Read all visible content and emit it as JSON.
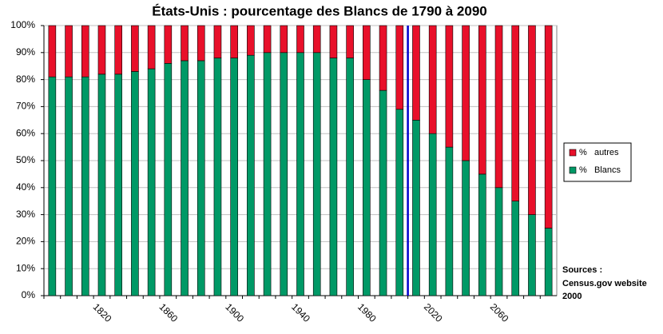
{
  "chart_data": {
    "type": "stacked_bar",
    "title": "États-Unis : pourcentage des Blancs de 1790 à 2090",
    "categories": [
      null,
      null,
      null,
      "1820",
      null,
      null,
      null,
      "1860",
      null,
      null,
      null,
      "1900",
      null,
      null,
      null,
      "1940",
      null,
      null,
      null,
      "1980",
      null,
      null,
      null,
      "2020",
      null,
      null,
      null,
      "2060",
      null,
      null,
      null
    ],
    "series": [
      {
        "name": "%   Blancs",
        "color": "#009966",
        "values": [
          81,
          81,
          81,
          82,
          82,
          83,
          84,
          86,
          87,
          87,
          88,
          88,
          89,
          90,
          90,
          90,
          90,
          88,
          88,
          80,
          76,
          69,
          65,
          60,
          55,
          50,
          45,
          40,
          35,
          30,
          25
        ]
      },
      {
        "name": "%   autres",
        "color": "#e8102a",
        "values": [
          19,
          19,
          19,
          18,
          18,
          17,
          16,
          14,
          13,
          13,
          12,
          12,
          11,
          10,
          10,
          10,
          10,
          12,
          12,
          20,
          24,
          31,
          35,
          40,
          45,
          50,
          55,
          60,
          65,
          70,
          75
        ]
      }
    ],
    "ylim": [
      0,
      100
    ],
    "yticks": [
      {
        "value": 0,
        "label": "0%"
      },
      {
        "value": 10,
        "label": "10%"
      },
      {
        "value": 20,
        "label": "20%"
      },
      {
        "value": 30,
        "label": "30%"
      },
      {
        "value": 40,
        "label": "40%"
      },
      {
        "value": 50,
        "label": "50%"
      },
      {
        "value": 60,
        "label": "60%"
      },
      {
        "value": 70,
        "label": "70%"
      },
      {
        "value": 80,
        "label": "80%"
      },
      {
        "value": 90,
        "label": "90%"
      },
      {
        "value": 100,
        "label": "100%"
      }
    ],
    "grid": true,
    "legend": "right",
    "sources": [
      "Sources :",
      "Census.gov website",
      "2000"
    ]
  }
}
